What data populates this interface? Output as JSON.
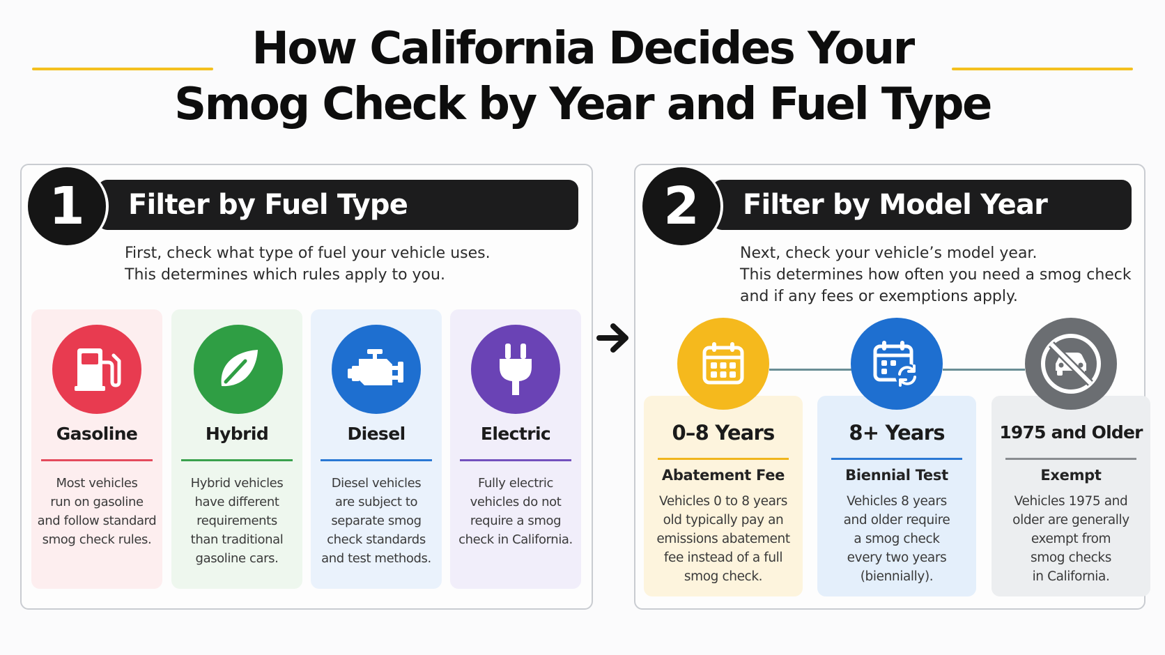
{
  "title": {
    "line1": "How California Decides Your",
    "line2": "Smog Check by Year and Fuel Type"
  },
  "colors": {
    "accent": "#f4c01e",
    "dark": "#1c1c1d",
    "connector": "#6a8e95"
  },
  "section1": {
    "number": "1",
    "heading": "Filter by Fuel Type",
    "intro": [
      "First, check what type of fuel your vehicle uses.",
      "This determines which rules apply to you."
    ],
    "cards": [
      {
        "name": "Gasoline",
        "icon": "fuel-pump-icon",
        "color": "#e83b50",
        "bg": "#fdeeef",
        "desc": [
          "Most vehicles",
          "run on gasoline",
          "and follow standard",
          "smog check rules."
        ]
      },
      {
        "name": "Hybrid",
        "icon": "leaf-icon",
        "color": "#2f9e44",
        "bg": "#eef7ee",
        "desc": [
          "Hybrid vehicles",
          "have different",
          "requirements",
          "than traditional",
          "gasoline cars."
        ]
      },
      {
        "name": "Diesel",
        "icon": "engine-icon",
        "color": "#1e6fd0",
        "bg": "#eaf2fc",
        "desc": [
          "Diesel vehicles",
          "are subject to",
          "separate smog",
          "check standards",
          "and test methods."
        ]
      },
      {
        "name": "Electric",
        "icon": "plug-icon",
        "color": "#6a43b5",
        "bg": "#f1eefa",
        "desc": [
          "Fully electric",
          "vehicles do not",
          "require a smog",
          "check in California."
        ]
      }
    ]
  },
  "section2": {
    "number": "2",
    "heading": "Filter by Model Year",
    "intro": [
      "Next, check your vehicle’s model year.",
      "This determines how often you need a smog check",
      "and if any fees or exemptions apply."
    ],
    "cards": [
      {
        "title": "0–8 Years",
        "subtitle": "Abatement Fee",
        "icon": "calendar-icon",
        "color": "#f5b91d",
        "bg": "#fdf4dd",
        "rule": "#f0b51c",
        "desc": [
          "Vehicles 0 to 8 years",
          "old typically pay an",
          "emissions abatement",
          "fee instead of a full",
          "smog check."
        ]
      },
      {
        "title": "8+ Years",
        "subtitle": "Biennial Test",
        "icon": "calendar-refresh-icon",
        "color": "#1e6fd0",
        "bg": "#e4effb",
        "rule": "#2a78d4",
        "desc": [
          "Vehicles 8 years",
          "and older require",
          "a smog check",
          "every two years",
          "(biennially)."
        ]
      },
      {
        "title": "1975 and Older",
        "subtitle": "Exempt",
        "icon": "no-car-icon",
        "color": "#6b6e72",
        "bg": "#eceef0",
        "rule": "#8a8d91",
        "desc": [
          "Vehicles 1975 and",
          "older are generally",
          "exempt from",
          "smog checks",
          "in California."
        ]
      }
    ]
  }
}
